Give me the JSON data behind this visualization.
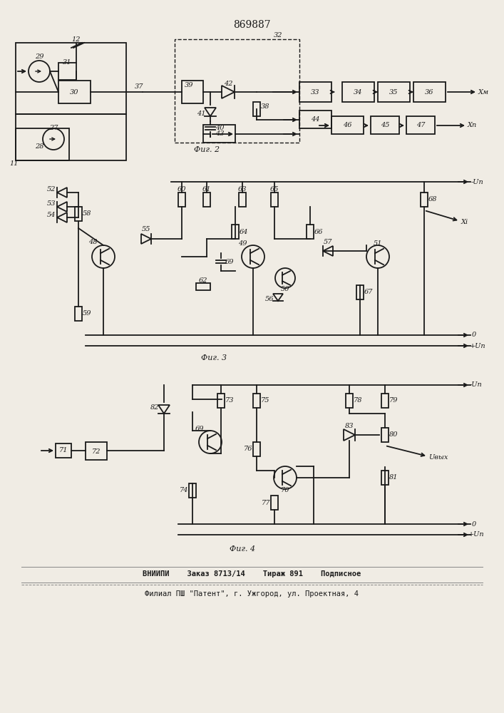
{
  "title": "869887",
  "bg_color": "#f0ece4",
  "line_color": "#1a1a1a",
  "footer_line1": "ВНИИПИ    Заказ 8713/14    Тираж 891    Подписное",
  "footer_line2": "Филиал ПШ \"Патент\", г. Ужгород, ул. Проектная, 4",
  "fig2_label": "Фиг. 2",
  "fig3_label": "Фиг. 3",
  "fig4_label": "Фиг. 4"
}
